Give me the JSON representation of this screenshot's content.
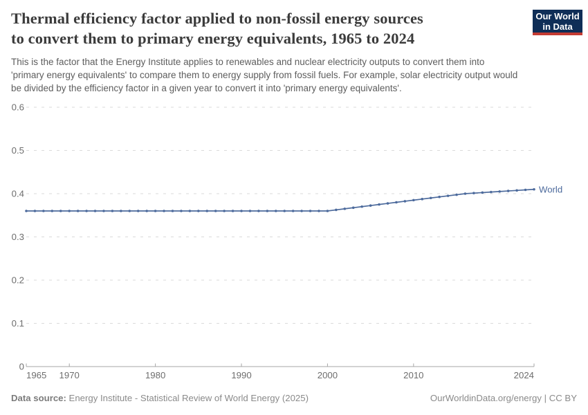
{
  "header": {
    "title": "Thermal efficiency factor applied to non-fossil energy sources to convert them to primary energy equivalents, 1965 to 2024",
    "title_lines": [
      "Thermal efficiency factor applied to non-fossil energy sources",
      "to convert them to primary energy equivalents, 1965 to 2024"
    ],
    "subtitle_lines": [
      "This is the factor that the Energy Institute applies to renewables and nuclear electricity outputs to convert them into",
      "'primary energy equivalents' to compare them to energy supply from fossil fuels. For example, solar electricity output would",
      "be divided by the efficiency factor in a given year to convert it into 'primary energy equivalents'."
    ],
    "logo": {
      "line1": "Our World",
      "line2": "in Data",
      "bg_color": "#0f2e57",
      "stripe_color": "#c43b33"
    }
  },
  "chart_data": {
    "type": "line",
    "title": "Thermal efficiency factor applied to non-fossil energy sources to convert them to primary energy equivalents, 1965 to 2024",
    "xlabel": "",
    "ylabel": "",
    "xlim": [
      1965,
      2024
    ],
    "ylim": [
      0,
      0.6
    ],
    "grid": "horizontal-dashed",
    "legend_position": "end-of-line-label",
    "x_ticks": [
      1965,
      1970,
      1980,
      1990,
      2000,
      2010,
      2024
    ],
    "x_tick_labels": [
      "1965",
      "1970",
      "1980",
      "1990",
      "2000",
      "2010",
      "2024"
    ],
    "y_ticks": [
      0,
      0.1,
      0.2,
      0.3,
      0.4,
      0.5,
      0.6
    ],
    "y_tick_labels": [
      "0",
      "0.1",
      "0.2",
      "0.3",
      "0.4",
      "0.5",
      "0.6"
    ],
    "series": [
      {
        "name": "World",
        "color": "#4c6a9c",
        "x": [
          1965,
          1966,
          1967,
          1968,
          1969,
          1970,
          1971,
          1972,
          1973,
          1974,
          1975,
          1976,
          1977,
          1978,
          1979,
          1980,
          1981,
          1982,
          1983,
          1984,
          1985,
          1986,
          1987,
          1988,
          1989,
          1990,
          1991,
          1992,
          1993,
          1994,
          1995,
          1996,
          1997,
          1998,
          1999,
          2000,
          2001,
          2002,
          2003,
          2004,
          2005,
          2006,
          2007,
          2008,
          2009,
          2010,
          2011,
          2012,
          2013,
          2014,
          2015,
          2016,
          2017,
          2018,
          2019,
          2020,
          2021,
          2022,
          2023,
          2024
        ],
        "values": [
          0.36,
          0.36,
          0.36,
          0.36,
          0.36,
          0.36,
          0.36,
          0.36,
          0.36,
          0.36,
          0.36,
          0.36,
          0.36,
          0.36,
          0.36,
          0.36,
          0.36,
          0.36,
          0.36,
          0.36,
          0.36,
          0.36,
          0.36,
          0.36,
          0.36,
          0.36,
          0.36,
          0.36,
          0.36,
          0.36,
          0.36,
          0.36,
          0.36,
          0.36,
          0.36,
          0.36,
          0.3625,
          0.365,
          0.3675,
          0.37,
          0.3725,
          0.375,
          0.3775,
          0.38,
          0.3825,
          0.385,
          0.3875,
          0.39,
          0.3925,
          0.395,
          0.3975,
          0.4,
          0.4013,
          0.4025,
          0.4038,
          0.405,
          0.4063,
          0.4075,
          0.4088,
          0.41
        ]
      }
    ]
  },
  "footer": {
    "data_source_label": "Data source:",
    "data_source_value": " Energy Institute - Statistical Review of World Energy (2025)",
    "attribution": "OurWorldinData.org/energy | CC BY"
  }
}
